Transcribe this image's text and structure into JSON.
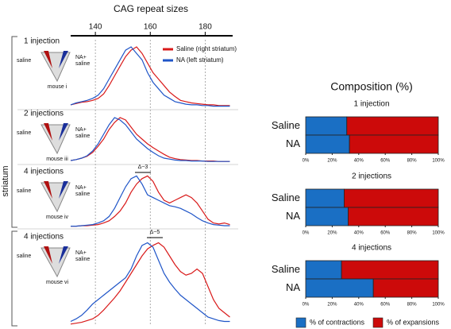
{
  "chart_data": [
    {
      "type": "line",
      "xlabel": "CAG repeat sizes",
      "ylabel": "striatum",
      "xlim": [
        131,
        190
      ],
      "xticks": [
        140,
        160,
        180
      ],
      "ylim": [
        0,
        1
      ],
      "x": [
        131,
        133,
        135,
        137,
        139,
        141,
        143,
        145,
        147,
        149,
        151,
        153,
        155,
        157,
        159,
        161,
        163,
        165,
        167,
        169,
        171,
        173,
        175,
        177,
        179,
        181,
        183,
        185,
        187,
        189
      ],
      "series": [
        {
          "name": "Saline (right striatum)",
          "color": "#d91a1a",
          "values": [
            [
              0.05,
              0.07,
              0.09,
              0.1,
              0.12,
              0.15,
              0.22,
              0.35,
              0.5,
              0.65,
              0.8,
              0.9,
              0.95,
              0.85,
              0.7,
              0.55,
              0.45,
              0.35,
              0.25,
              0.18,
              0.12,
              0.1,
              0.08,
              0.07,
              0.06,
              0.05,
              0.05,
              0.04,
              0.04,
              0.04
            ],
            [
              0.05,
              0.07,
              0.1,
              0.14,
              0.22,
              0.35,
              0.5,
              0.7,
              0.85,
              0.95,
              0.9,
              0.75,
              0.6,
              0.5,
              0.4,
              0.32,
              0.25,
              0.18,
              0.12,
              0.09,
              0.07,
              0.06,
              0.05,
              0.05,
              0.04,
              0.04,
              0.04,
              0.03,
              0.03,
              0.03
            ],
            [
              0.02,
              0.02,
              0.03,
              0.03,
              0.04,
              0.05,
              0.08,
              0.12,
              0.2,
              0.3,
              0.45,
              0.65,
              0.8,
              0.9,
              0.95,
              0.85,
              0.65,
              0.5,
              0.45,
              0.5,
              0.55,
              0.6,
              0.55,
              0.45,
              0.3,
              0.15,
              0.08,
              0.06,
              0.08,
              0.05
            ],
            [
              0.02,
              0.03,
              0.04,
              0.06,
              0.08,
              0.12,
              0.18,
              0.25,
              0.32,
              0.4,
              0.5,
              0.6,
              0.7,
              0.8,
              0.88,
              0.92,
              0.95,
              0.9,
              0.8,
              0.7,
              0.62,
              0.58,
              0.6,
              0.65,
              0.6,
              0.45,
              0.3,
              0.2,
              0.15,
              0.1
            ]
          ]
        },
        {
          "name": "NA (left striatum)",
          "color": "#1f55c8",
          "values": [
            [
              0.05,
              0.08,
              0.1,
              0.12,
              0.15,
              0.2,
              0.3,
              0.45,
              0.6,
              0.75,
              0.9,
              0.95,
              0.85,
              0.75,
              0.55,
              0.4,
              0.3,
              0.2,
              0.15,
              0.1,
              0.08,
              0.06,
              0.05,
              0.05,
              0.04,
              0.04,
              0.03,
              0.03,
              0.03,
              0.03
            ],
            [
              0.05,
              0.07,
              0.1,
              0.15,
              0.25,
              0.4,
              0.6,
              0.8,
              0.95,
              0.9,
              0.8,
              0.65,
              0.5,
              0.4,
              0.3,
              0.22,
              0.15,
              0.1,
              0.08,
              0.06,
              0.05,
              0.05,
              0.04,
              0.04,
              0.04,
              0.03,
              0.03,
              0.03,
              0.03,
              0.03
            ],
            [
              0.02,
              0.02,
              0.03,
              0.04,
              0.05,
              0.08,
              0.12,
              0.2,
              0.35,
              0.55,
              0.75,
              0.9,
              0.95,
              0.8,
              0.6,
              0.55,
              0.5,
              0.45,
              0.4,
              0.38,
              0.35,
              0.3,
              0.25,
              0.18,
              0.12,
              0.08,
              0.05,
              0.04,
              0.03,
              0.03
            ],
            [
              0.05,
              0.08,
              0.12,
              0.18,
              0.25,
              0.3,
              0.35,
              0.4,
              0.45,
              0.5,
              0.55,
              0.65,
              0.8,
              0.92,
              0.95,
              0.9,
              0.75,
              0.6,
              0.5,
              0.42,
              0.35,
              0.3,
              0.25,
              0.2,
              0.15,
              0.1,
              0.08,
              0.06,
              0.05,
              0.05
            ]
          ]
        }
      ],
      "panels": [
        {
          "title": "1 injection",
          "left_label": "saline",
          "right_label": [
            "NA+",
            "saline"
          ],
          "mouse": "mouse i"
        },
        {
          "title": "2 injections",
          "left_label": "saline",
          "right_label": [
            "NA+",
            "saline"
          ],
          "mouse": "mouse iii"
        },
        {
          "title": "4 injections",
          "left_label": "saline",
          "right_label": [
            "NA+",
            "saline"
          ],
          "mouse": "mouse iv",
          "annotation": "Δ~3"
        },
        {
          "title": "4 injections",
          "left_label": "saline",
          "right_label": [
            "NA+",
            "saline"
          ],
          "mouse": "mouse vi",
          "annotation": "Δ~5"
        }
      ]
    },
    {
      "type": "bar",
      "title": "Composition (%)",
      "orientation": "horizontal",
      "stacked": true,
      "categories": [
        "Saline",
        "NA"
      ],
      "panels": [
        "1 injection",
        "2 injections",
        "4 injections"
      ],
      "xlim": [
        0,
        100
      ],
      "xticks": [
        {
          "value": 0,
          "label": "0%"
        },
        {
          "value": 20,
          "label": "20%"
        },
        {
          "value": 40,
          "label": "40%"
        },
        {
          "value": 60,
          "label": "60%"
        },
        {
          "value": 80,
          "label": "80%"
        },
        {
          "value": 100,
          "label": "100%"
        }
      ],
      "series": [
        {
          "name": "% of contractions",
          "color": "#1a6fc4",
          "values": [
            [
              31,
              33
            ],
            [
              29,
              32
            ],
            [
              27,
              51
            ]
          ]
        },
        {
          "name": "% of expansions",
          "color": "#cc0a0a",
          "values": [
            [
              69,
              67
            ],
            [
              71,
              68
            ],
            [
              73,
              49
            ]
          ]
        }
      ]
    }
  ]
}
